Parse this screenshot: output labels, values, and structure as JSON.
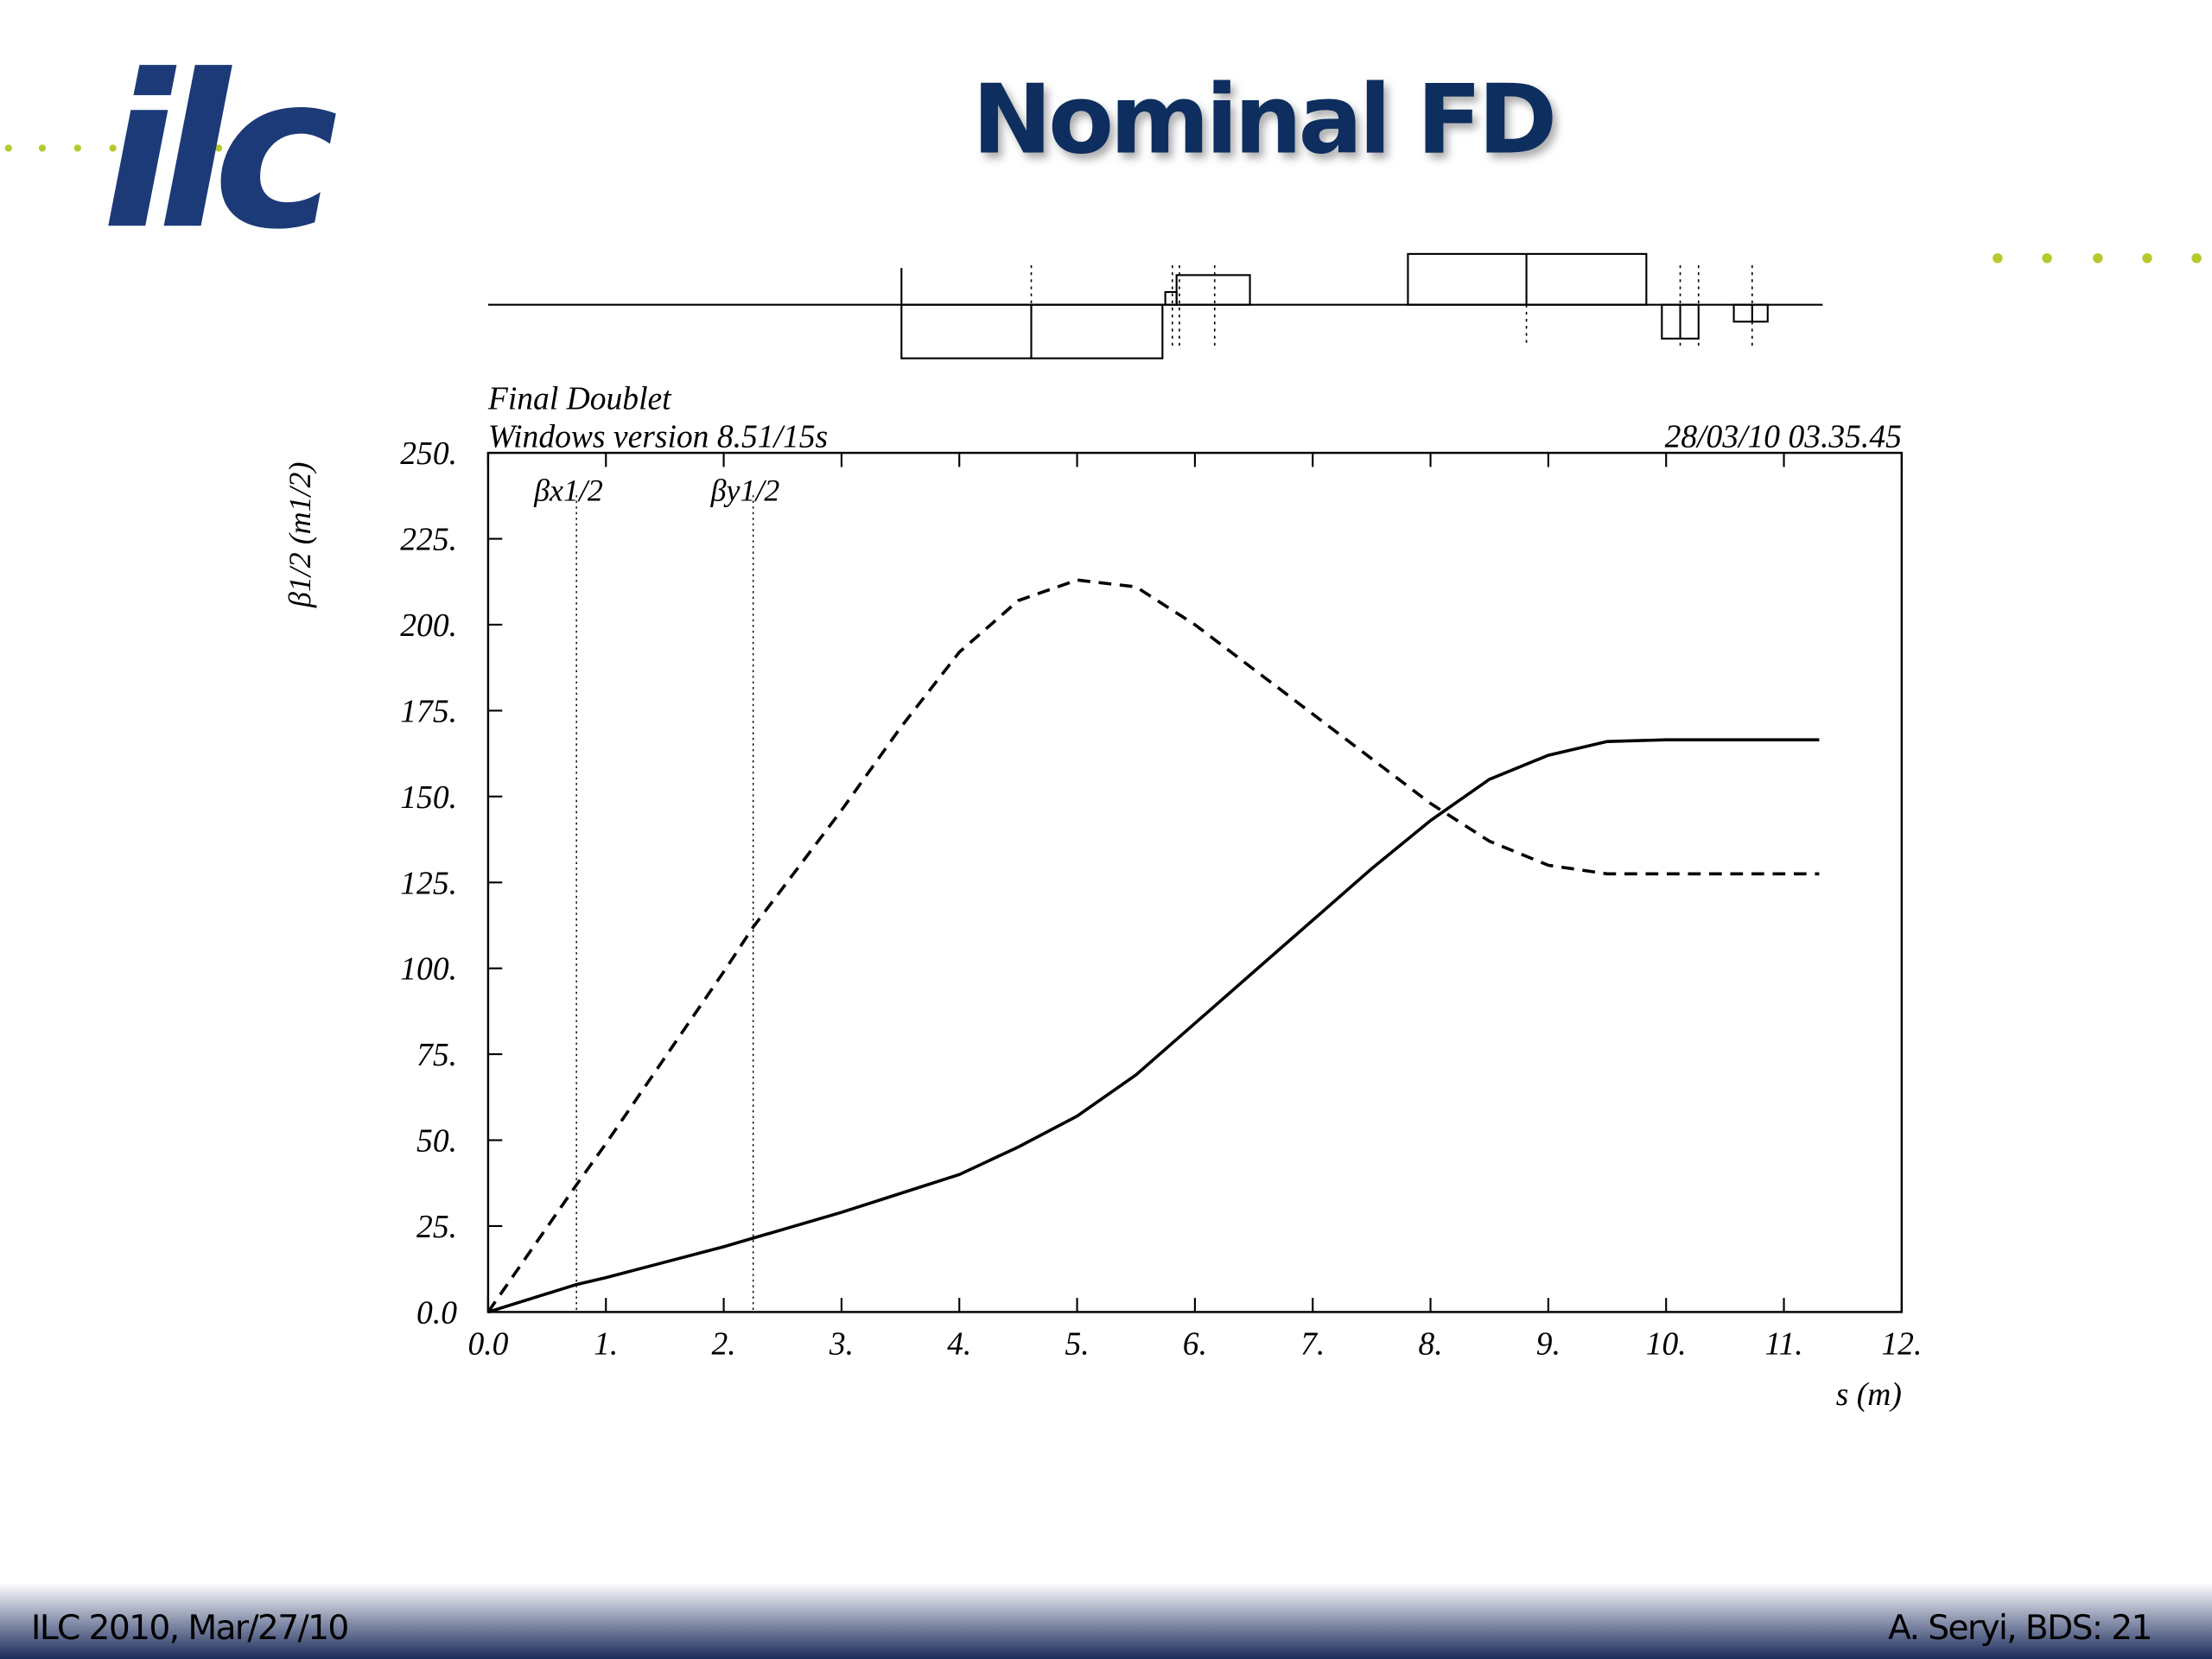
{
  "slide": {
    "title": "Nominal FD",
    "logo": "ilc",
    "footer_left": "ILC 2010, Mar/27/10",
    "footer_right": "A. Seryi, BDS: 21"
  },
  "chart_data": {
    "type": "line",
    "header_left": [
      "Final Doublet",
      "Windows version 8.51/15s"
    ],
    "header_right": "28/03/10  03.35.45",
    "x_label": "s (m)",
    "y_label": "β1/2 (m1/2)",
    "xlim": [
      0,
      12
    ],
    "ylim": [
      0,
      250
    ],
    "xticks": [
      {
        "value": 0,
        "label": "0.0"
      },
      {
        "value": 1,
        "label": "1."
      },
      {
        "value": 2,
        "label": "2."
      },
      {
        "value": 3,
        "label": "3."
      },
      {
        "value": 4,
        "label": "4."
      },
      {
        "value": 5,
        "label": "5."
      },
      {
        "value": 6,
        "label": "6."
      },
      {
        "value": 7,
        "label": "7."
      },
      {
        "value": 8,
        "label": "8."
      },
      {
        "value": 9,
        "label": "9."
      },
      {
        "value": 10,
        "label": "10."
      },
      {
        "value": 11,
        "label": "11."
      },
      {
        "value": 12,
        "label": "12."
      }
    ],
    "yticks": [
      {
        "value": 0,
        "label": "0.0"
      },
      {
        "value": 25,
        "label": "25."
      },
      {
        "value": 50,
        "label": "50."
      },
      {
        "value": 75,
        "label": "75."
      },
      {
        "value": 100,
        "label": "100."
      },
      {
        "value": 125,
        "label": "125."
      },
      {
        "value": 150,
        "label": "150."
      },
      {
        "value": 175,
        "label": "175."
      },
      {
        "value": 200,
        "label": "200."
      },
      {
        "value": 225,
        "label": "225."
      },
      {
        "value": 250,
        "label": "250."
      }
    ],
    "series": [
      {
        "name": "βx1/2",
        "color": "#000000",
        "dash": false,
        "label_x": 0.75,
        "x": [
          0,
          0.75,
          1,
          2,
          3,
          4,
          4.5,
          5,
          5.5,
          6,
          6.5,
          7,
          7.5,
          8,
          8.5,
          9,
          9.5,
          10,
          11.3
        ],
        "values": [
          0,
          8,
          10,
          19,
          29,
          40,
          48,
          57,
          69,
          84,
          99,
          114,
          129,
          143,
          155,
          162,
          166,
          166.5,
          166.5
        ]
      },
      {
        "name": "βy1/2",
        "color": "#000000",
        "dash": true,
        "label_x": 2.25,
        "x": [
          0,
          0.75,
          1,
          2,
          2.25,
          3,
          3.5,
          4,
          4.5,
          5,
          5.5,
          6,
          6.5,
          7,
          7.5,
          8,
          8.5,
          9,
          9.5,
          10,
          11.3
        ],
        "values": [
          0,
          37,
          49,
          99,
          112,
          146,
          170,
          192,
          207,
          213,
          211,
          200,
          187,
          174,
          161,
          148,
          137,
          130,
          127.5,
          127.5,
          127.5
        ]
      }
    ]
  }
}
